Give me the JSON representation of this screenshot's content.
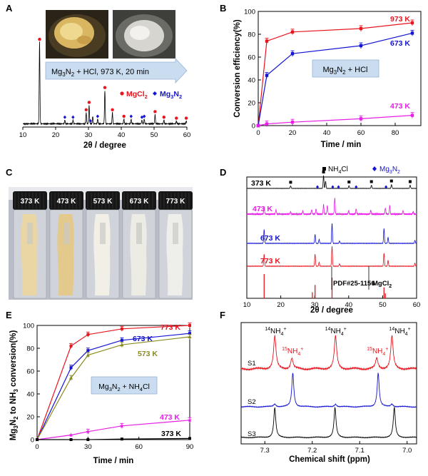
{
  "figure": {
    "panels": [
      "A",
      "B",
      "C",
      "D",
      "E",
      "F"
    ],
    "colors": {
      "red": "#e8141e",
      "blue": "#1414d2",
      "magenta": "#e61ee6",
      "olive": "#8c8a1e",
      "black": "#000000"
    }
  },
  "panel_c": {
    "labels": [
      "373 K",
      "473 K",
      "573 K",
      "673 K",
      "773 K"
    ],
    "vial_powder_colors": [
      "#e9d6a4",
      "#e3c98c",
      "#f1efe6",
      "#ecebe4",
      "#eeeeea"
    ]
  },
  "chart_data": [
    {
      "panel": "A",
      "type": "line",
      "xlabel": "2θ / degree",
      "xlim": [
        10,
        60
      ],
      "xticks": [
        10,
        20,
        30,
        40,
        50,
        60
      ],
      "banner": "Mg3N2 + HCl, 973 K, 20 min",
      "legend": [
        {
          "name": "MgCl2",
          "marker": "circle",
          "color": "#e8141e"
        },
        {
          "name": "Mg3N2",
          "marker": "diamond",
          "color": "#1414d2"
        }
      ],
      "peaks": [
        {
          "x": 15.1,
          "h": 0.88
        },
        {
          "x": 22.8,
          "h": 0.04
        },
        {
          "x": 25.3,
          "h": 0.04
        },
        {
          "x": 29.3,
          "h": 0.12
        },
        {
          "x": 30.2,
          "h": 0.2
        },
        {
          "x": 31.3,
          "h": 0.08
        },
        {
          "x": 32.8,
          "h": 0.05
        },
        {
          "x": 35.0,
          "h": 0.36
        },
        {
          "x": 37.3,
          "h": 0.12
        },
        {
          "x": 40.8,
          "h": 0.05
        },
        {
          "x": 43.0,
          "h": 0.05
        },
        {
          "x": 46.3,
          "h": 0.04
        },
        {
          "x": 47.0,
          "h": 0.05
        },
        {
          "x": 50.3,
          "h": 0.1
        },
        {
          "x": 53.0,
          "h": 0.04
        },
        {
          "x": 56.8,
          "h": 0.03
        },
        {
          "x": 59.8,
          "h": 0.03
        }
      ],
      "mgcl2_markers": [
        15.1,
        29.3,
        30.2,
        35.0,
        37.3,
        40.8,
        50.3,
        53.0,
        56.8,
        59.8
      ],
      "mg3n2_markers": [
        22.8,
        25.3,
        30.6,
        32.8,
        43.0,
        46.3,
        47.0
      ]
    },
    {
      "panel": "B",
      "type": "line",
      "xlabel": "Time / min",
      "ylabel": "Conversion efficiency(%)",
      "xlim": [
        0,
        95
      ],
      "ylim": [
        0,
        100
      ],
      "xticks": [
        0,
        20,
        40,
        60,
        80
      ],
      "yticks": [
        0,
        20,
        40,
        60,
        80,
        100
      ],
      "box_label": "Mg3N2 + HCl",
      "x": [
        0,
        5,
        20,
        60,
        90
      ],
      "series": [
        {
          "name": "973 K",
          "color": "#e8141e",
          "values": [
            0,
            74,
            82,
            85,
            90
          ]
        },
        {
          "name": "673 K",
          "color": "#1414d2",
          "values": [
            0,
            44,
            63,
            70,
            81
          ]
        },
        {
          "name": "473 K",
          "color": "#e61ee6",
          "values": [
            0,
            1.5,
            3,
            6,
            9
          ]
        }
      ]
    },
    {
      "panel": "D",
      "type": "line",
      "xlabel": "2θ / degree",
      "xlim": [
        10,
        60
      ],
      "xticks": [
        10,
        20,
        30,
        40,
        50,
        60
      ],
      "legend": [
        {
          "name": "NH4Cl",
          "marker": "square",
          "color": "#000000"
        },
        {
          "name": "Mg3N2",
          "marker": "diamond",
          "color": "#1414d2"
        }
      ],
      "series": [
        {
          "name": "373 K",
          "color": "#000000",
          "peaks": [
            {
              "x": 22.9,
              "h": 0.2
            },
            {
              "x": 32.6,
              "h": 1.0
            },
            {
              "x": 33.2,
              "h": 0.55
            },
            {
              "x": 40.1,
              "h": 0.22
            },
            {
              "x": 46.7,
              "h": 0.25
            },
            {
              "x": 52.6,
              "h": 0.3
            },
            {
              "x": 58.1,
              "h": 0.25
            }
          ]
        },
        {
          "name": "473 K",
          "color": "#e61ee6",
          "peaks": [
            {
              "x": 15.1,
              "h": 0.45
            },
            {
              "x": 18.6,
              "h": 0.25
            },
            {
              "x": 22.9,
              "h": 0.15
            },
            {
              "x": 26.5,
              "h": 0.18
            },
            {
              "x": 29.1,
              "h": 0.25
            },
            {
              "x": 30.4,
              "h": 0.3
            },
            {
              "x": 32.6,
              "h": 0.55
            },
            {
              "x": 33.7,
              "h": 0.5
            },
            {
              "x": 35.9,
              "h": 0.95
            },
            {
              "x": 40.0,
              "h": 0.2
            },
            {
              "x": 42.2,
              "h": 0.3
            },
            {
              "x": 46.5,
              "h": 0.22
            },
            {
              "x": 50.8,
              "h": 0.35
            },
            {
              "x": 52.1,
              "h": 0.5
            },
            {
              "x": 56.0,
              "h": 0.2
            },
            {
              "x": 59.0,
              "h": 0.15
            }
          ]
        },
        {
          "name": "673 K",
          "color": "#1414d2",
          "peaks": [
            {
              "x": 15.1,
              "h": 0.7
            },
            {
              "x": 30.1,
              "h": 0.45
            },
            {
              "x": 31.3,
              "h": 0.2
            },
            {
              "x": 35.1,
              "h": 1.0
            },
            {
              "x": 37.3,
              "h": 0.12
            },
            {
              "x": 50.4,
              "h": 0.75
            },
            {
              "x": 51.6,
              "h": 0.3
            },
            {
              "x": 59.5,
              "h": 0.15
            }
          ]
        },
        {
          "name": "773 K",
          "color": "#e8141e",
          "peaks": [
            {
              "x": 15.1,
              "h": 0.6
            },
            {
              "x": 30.1,
              "h": 0.6
            },
            {
              "x": 31.3,
              "h": 0.2
            },
            {
              "x": 35.1,
              "h": 1.0
            },
            {
              "x": 37.3,
              "h": 0.12
            },
            {
              "x": 50.4,
              "h": 0.65
            },
            {
              "x": 51.6,
              "h": 0.3
            },
            {
              "x": 59.5,
              "h": 0.15
            }
          ]
        }
      ],
      "nh4cl_markers": [
        22.9,
        32.6,
        40.1,
        46.7,
        52.6,
        58.1
      ],
      "mg3n2_markers": [
        30.8,
        35.3,
        37.0,
        42.2,
        51.0
      ],
      "reference": {
        "label": "PDF#25-1156",
        "sub_label": "MgCl2",
        "color": "#e8141e",
        "lines": [
          {
            "x": 15.1,
            "h": 1.0
          },
          {
            "x": 29.3,
            "h": 0.25
          },
          {
            "x": 30.1,
            "h": 0.55
          },
          {
            "x": 35.1,
            "h": 0.85
          },
          {
            "x": 50.4,
            "h": 0.45
          },
          {
            "x": 50.8,
            "h": 0.2
          }
        ]
      }
    },
    {
      "panel": "E",
      "type": "line",
      "xlabel": "Time / min",
      "ylabel": "Mg3N2 to NH3 conversion(%)",
      "xlim": [
        0,
        90
      ],
      "ylim": [
        0,
        100
      ],
      "xticks": [
        0,
        30,
        60,
        90
      ],
      "yticks": [
        0,
        20,
        40,
        60,
        80,
        100
      ],
      "box_label": "Mg3N2 + NH4Cl",
      "x": [
        0,
        20,
        30,
        50,
        90
      ],
      "series": [
        {
          "name": "773 K",
          "color": "#e8141e",
          "values": [
            0,
            82,
            92,
            97,
            100
          ]
        },
        {
          "name": "673 K",
          "color": "#1414d2",
          "values": [
            0,
            63,
            78,
            87,
            93
          ]
        },
        {
          "name": "573 K",
          "color": "#8c8a1e",
          "values": [
            0,
            54,
            74,
            83,
            90
          ]
        },
        {
          "name": "473 K",
          "color": "#e61ee6",
          "values": [
            0,
            4,
            7,
            12,
            17
          ]
        },
        {
          "name": "373 K",
          "color": "#000000",
          "values": [
            0,
            0,
            0,
            0.5,
            1
          ]
        }
      ]
    },
    {
      "panel": "F",
      "type": "line",
      "xlabel": "Chemical shift (ppm)",
      "xlim": [
        7.35,
        6.98
      ],
      "xticks": [
        7.3,
        7.2,
        7.1,
        7.0
      ],
      "series": [
        {
          "name": "S1",
          "color": "#e8141e",
          "peaks": [
            {
              "x": 7.279,
              "h": 1.0,
              "w": 0.003
            },
            {
              "x": 7.243,
              "h": 0.32,
              "w": 0.003
            },
            {
              "x": 7.151,
              "h": 1.0,
              "w": 0.003
            },
            {
              "x": 7.064,
              "h": 0.32,
              "w": 0.003
            },
            {
              "x": 7.032,
              "h": 1.0,
              "w": 0.003
            }
          ]
        },
        {
          "name": "S2",
          "color": "#1414d2",
          "peaks": [
            {
              "x": 7.279,
              "h": 0.08,
              "w": 0.003
            },
            {
              "x": 7.241,
              "h": 1.0,
              "w": 0.0025
            },
            {
              "x": 7.151,
              "h": 0.08,
              "w": 0.003
            },
            {
              "x": 7.061,
              "h": 1.0,
              "w": 0.0025
            },
            {
              "x": 7.032,
              "h": 0.08,
              "w": 0.003
            }
          ]
        },
        {
          "name": "S3",
          "color": "#000000",
          "peaks": [
            {
              "x": 7.279,
              "h": 1.0,
              "w": 0.0025
            },
            {
              "x": 7.152,
              "h": 1.0,
              "w": 0.0025
            },
            {
              "x": 7.027,
              "h": 1.0,
              "w": 0.0025
            }
          ]
        }
      ],
      "annotations": [
        {
          "iso": "14",
          "name": "NH4+",
          "x": 7.279,
          "color": "#000000"
        },
        {
          "iso": "15",
          "name": "NH4+",
          "x": 7.243,
          "color": "#e8141e"
        },
        {
          "iso": "14",
          "name": "NH4+",
          "x": 7.152,
          "color": "#000000"
        },
        {
          "iso": "15",
          "name": "NH4+",
          "x": 7.064,
          "color": "#e8141e"
        },
        {
          "iso": "14",
          "name": "NH4+",
          "x": 7.032,
          "color": "#000000"
        }
      ]
    }
  ]
}
